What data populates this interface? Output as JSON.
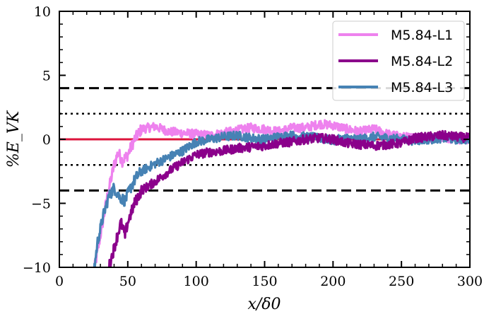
{
  "chart_data": {
    "type": "line",
    "xlabel": "x/δ0",
    "ylabel": "%E_VK",
    "xlim": [
      0,
      300
    ],
    "ylim": [
      -10,
      10
    ],
    "x_ticks": [
      0,
      50,
      100,
      150,
      200,
      250,
      300
    ],
    "x_tick_labels": [
      "0",
      "50",
      "100",
      "150",
      "200",
      "250",
      "300"
    ],
    "y_ticks": [
      -10,
      -5,
      0,
      5,
      10
    ],
    "y_tick_labels": [
      "−10",
      "−5",
      "0",
      "5",
      "10"
    ],
    "grid": false,
    "legend_position": "top-right",
    "series": [
      {
        "name": "M5.84-L1",
        "color": "#ee82ee",
        "x": [
          25,
          30,
          35,
          40,
          43,
          46,
          50,
          55,
          60,
          70,
          80,
          90,
          100,
          110,
          120,
          130,
          140,
          150,
          160,
          170,
          180,
          190,
          200,
          210,
          220,
          230,
          240,
          250,
          260,
          270,
          280,
          290,
          300
        ],
        "y": [
          -10.5,
          -7.5,
          -4.5,
          -2.0,
          -1.0,
          -1.7,
          -1.2,
          0.0,
          0.8,
          1.0,
          0.6,
          0.5,
          0.4,
          0.3,
          0.5,
          0.7,
          0.9,
          0.8,
          0.6,
          0.9,
          0.9,
          1.2,
          1.1,
          0.8,
          0.6,
          0.8,
          0.4,
          0.2,
          0.1,
          0.1,
          0.2,
          0.0,
          0.0
        ]
      },
      {
        "name": "M5.84-L2",
        "color": "#8b008b",
        "x": [
          35,
          40,
          45,
          48,
          50,
          55,
          60,
          70,
          80,
          90,
          100,
          110,
          120,
          130,
          140,
          150,
          160,
          170,
          180,
          190,
          200,
          210,
          220,
          230,
          240,
          250,
          260,
          270,
          280,
          290,
          300
        ],
        "y": [
          -10.5,
          -8.5,
          -6.5,
          -7.5,
          -6.5,
          -5.0,
          -4.0,
          -3.3,
          -2.5,
          -1.8,
          -1.2,
          -1.0,
          -0.9,
          -0.7,
          -0.6,
          -0.5,
          -0.3,
          -0.2,
          0.0,
          0.1,
          0.0,
          -0.3,
          -0.4,
          -0.5,
          -0.4,
          -0.3,
          0.1,
          0.2,
          0.3,
          0.2,
          0.1
        ]
      },
      {
        "name": "M5.84-L3",
        "color": "#4682b4",
        "x": [
          25,
          28,
          32,
          36,
          40,
          44,
          48,
          52,
          56,
          60,
          70,
          80,
          90,
          100,
          110,
          120,
          130,
          140,
          150,
          160,
          170,
          180,
          190,
          200,
          210,
          220,
          230,
          240,
          250,
          260,
          270,
          280,
          290,
          300
        ],
        "y": [
          -10.5,
          -8.0,
          -6.0,
          -4.5,
          -3.8,
          -4.5,
          -4.8,
          -3.8,
          -3.0,
          -2.5,
          -1.9,
          -1.4,
          -0.9,
          -0.2,
          0.0,
          0.2,
          0.3,
          0.1,
          0.0,
          0.2,
          0.3,
          0.2,
          0.1,
          -0.1,
          0.1,
          0.0,
          0.2,
          0.1,
          0.0,
          -0.1,
          0.0,
          0.1,
          0.0,
          0.0
        ]
      }
    ],
    "reference_lines": [
      {
        "y": 0,
        "style": "solid",
        "color": "#dc143c"
      },
      {
        "y": 4,
        "style": "dashed",
        "color": "#000000"
      },
      {
        "y": -4,
        "style": "dashed",
        "color": "#000000"
      },
      {
        "y": 2,
        "style": "dotted",
        "color": "#000000"
      },
      {
        "y": -2,
        "style": "dotted",
        "color": "#000000"
      }
    ]
  }
}
